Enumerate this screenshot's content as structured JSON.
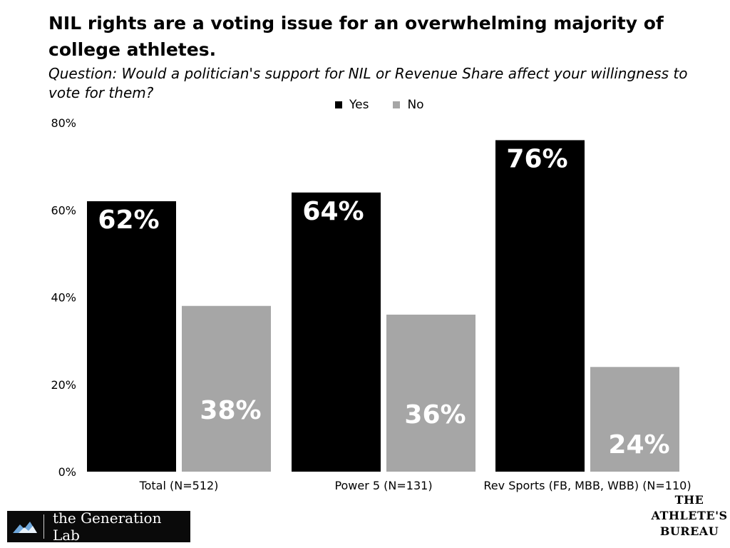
{
  "chart_data": {
    "type": "bar",
    "title": "NIL rights are a voting issue for an overwhelming majority of college athletes.",
    "subtitle": "Question: Would a politician's support for NIL or Revenue Share affect your willingness to vote for them?",
    "categories": [
      "Total (N=512)",
      "Power 5 (N=131)",
      "Rev Sports (FB, MBB, WBB) (N=110)"
    ],
    "series": [
      {
        "name": "Yes",
        "color": "#000000",
        "values": [
          62,
          64,
          76
        ],
        "labels": [
          "62%",
          "64%",
          "76%"
        ]
      },
      {
        "name": "No",
        "color": "#a6a6a6",
        "values": [
          38,
          36,
          24
        ],
        "labels": [
          "38%",
          "36%",
          "24%"
        ]
      }
    ],
    "y_ticks": [
      0,
      20,
      40,
      60,
      80
    ],
    "y_tick_labels": [
      "0%",
      "20%",
      "40%",
      "60%",
      "80%"
    ],
    "ylim": [
      0,
      80
    ],
    "legend_position": "top-center",
    "grid": false
  },
  "logos": {
    "generation_lab": "the Generation Lab",
    "athletes_bureau": [
      "THE",
      "ATHLETE'S",
      "BUREAU"
    ]
  }
}
